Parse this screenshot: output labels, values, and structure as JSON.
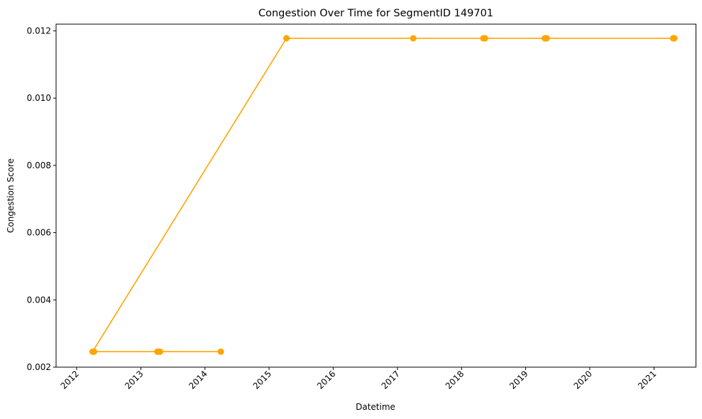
{
  "chart_data": {
    "type": "line",
    "title": "Congestion Over Time for SegmentID 149701",
    "xlabel": "Datetime",
    "ylabel": "Congestion Score",
    "x_type": "date",
    "xlim": [
      "2011-09-06",
      "2021-08-28"
    ],
    "ylim": [
      0.002,
      0.0122
    ],
    "x_ticks": [
      "2012",
      "2013",
      "2014",
      "2015",
      "2016",
      "2017",
      "2018",
      "2019",
      "2020",
      "2021"
    ],
    "y_ticks": [
      "0.002",
      "0.004",
      "0.006",
      "0.008",
      "0.010",
      "0.012"
    ],
    "grid": false,
    "legend": false,
    "color": "#FFA500",
    "marker": "circle",
    "series": [
      {
        "x": [
          "2021-04-20",
          "2021-04-21",
          "2021-04-22",
          "2021-04-23",
          "2021-04-25",
          "2021-04-27",
          "2017-04-01",
          "2018-05-05",
          "2018-05-10",
          "2018-05-15",
          "2019-04-20",
          "2019-04-25",
          "2019-05-01",
          "2015-04-10",
          "2012-04-01",
          "2012-04-05",
          "2012-04-09",
          "2013-04-05",
          "2013-04-10",
          "2013-04-15",
          "2013-04-20",
          "2014-04-01"
        ],
        "y": [
          0.01178,
          0.01178,
          0.01178,
          0.01178,
          0.01178,
          0.01178,
          0.01178,
          0.01178,
          0.01178,
          0.01178,
          0.01178,
          0.01178,
          0.01178,
          0.01178,
          0.00246,
          0.00246,
          0.00246,
          0.00246,
          0.00246,
          0.00246,
          0.00246,
          0.00246
        ]
      }
    ]
  }
}
